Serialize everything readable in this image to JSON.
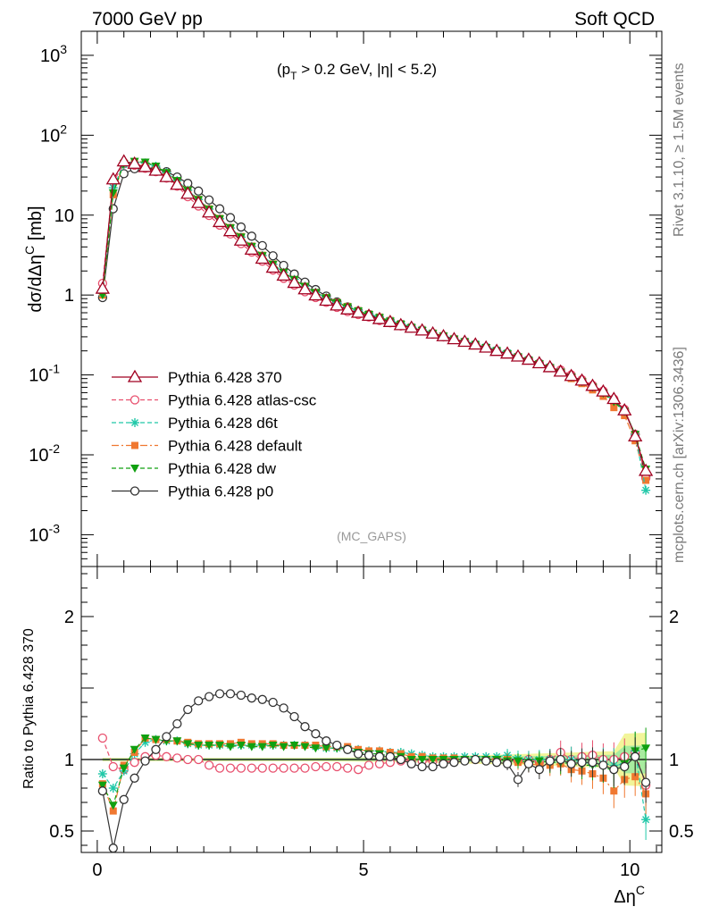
{
  "header": {
    "left": "7000 GeV pp",
    "right": "Soft QCD"
  },
  "side": {
    "rivet": "Rivet 3.1.10, ≥ 1.5M events",
    "mcplots": "mcplots.cern.ch [arXiv:1306.3436]"
  },
  "main": {
    "ylabel_html": "dσ/dΔη^C [mb]",
    "cut": "(pT > 0.2 GeV, |η| < 5.2)",
    "watermark": "(MC_GAPS)"
  },
  "ratio": {
    "ylabel": "Ratio to Pythia 6.428 370"
  },
  "xaxis_label": "Δη^C",
  "chart_data": [
    {
      "type": "line",
      "panel": "main",
      "yscale": "log",
      "xlim": [
        -0.3,
        10.6
      ],
      "ylim": [
        0.0004,
        2000
      ],
      "x": [
        0.1,
        0.3,
        0.5,
        0.7,
        0.9,
        1.1,
        1.3,
        1.5,
        1.7,
        1.9,
        2.1,
        2.3,
        2.5,
        2.7,
        2.9,
        3.1,
        3.3,
        3.5,
        3.7,
        3.9,
        4.1,
        4.3,
        4.5,
        4.7,
        4.9,
        5.1,
        5.3,
        5.5,
        5.7,
        5.9,
        6.1,
        6.3,
        6.5,
        6.7,
        6.9,
        7.1,
        7.3,
        7.5,
        7.7,
        7.9,
        8.1,
        8.3,
        8.5,
        8.7,
        8.9,
        9.1,
        9.3,
        9.5,
        9.7,
        9.9,
        10.1,
        10.3
      ],
      "series": [
        {
          "name": "Pythia 6.428 370",
          "color": "#a00020",
          "marker": "triangle-open",
          "values": [
            1.2,
            28,
            47,
            44,
            40,
            36,
            30,
            24,
            18.5,
            14.2,
            10.8,
            8.2,
            6.3,
            4.8,
            3.7,
            2.85,
            2.2,
            1.75,
            1.42,
            1.18,
            0.99,
            0.85,
            0.74,
            0.66,
            0.6,
            0.55,
            0.5,
            0.46,
            0.42,
            0.39,
            0.36,
            0.33,
            0.305,
            0.28,
            0.26,
            0.24,
            0.22,
            0.2,
            0.185,
            0.17,
            0.155,
            0.14,
            0.125,
            0.11,
            0.097,
            0.085,
            0.073,
            0.062,
            0.05,
            0.036,
            0.017,
            0.0063
          ]
        },
        {
          "name": "Pythia 6.428 atlas-csc",
          "color": "#e8506e",
          "marker": "circle-open",
          "values": [
            1.4,
            26,
            44,
            42,
            38.5,
            35,
            29,
            23,
            17,
            13,
            9.9,
            7.5,
            5.8,
            4.4,
            3.45,
            2.65,
            2.05,
            1.62,
            1.33,
            1.1,
            0.93,
            0.81,
            0.7,
            0.62,
            0.57,
            0.53,
            0.48,
            0.45,
            0.41,
            0.385,
            0.355,
            0.325,
            0.3,
            0.28,
            0.26,
            0.24,
            0.22,
            0.2,
            0.185,
            0.17,
            0.155,
            0.14,
            0.125,
            0.115,
            0.1,
            0.087,
            0.074,
            0.063,
            0.05,
            0.037,
            0.018,
            0.0051
          ]
        },
        {
          "name": "Pythia 6.428 d6t",
          "color": "#20c8a8",
          "marker": "asterisk",
          "values": [
            1.05,
            22,
            43,
            46,
            45,
            41,
            34,
            27,
            20.5,
            15.7,
            11.9,
            9,
            6.9,
            5.3,
            4.05,
            3.12,
            2.42,
            1.92,
            1.57,
            1.29,
            1.08,
            0.92,
            0.8,
            0.71,
            0.64,
            0.58,
            0.53,
            0.48,
            0.44,
            0.4,
            0.37,
            0.335,
            0.31,
            0.285,
            0.265,
            0.245,
            0.225,
            0.205,
            0.19,
            0.17,
            0.155,
            0.14,
            0.125,
            0.11,
            0.095,
            0.083,
            0.071,
            0.06,
            0.048,
            0.035,
            0.018,
            0.0036
          ]
        },
        {
          "name": "Pythia 6.428 default",
          "color": "#f07830",
          "marker": "square",
          "values": [
            1.0,
            18,
            45,
            46,
            46,
            41,
            34,
            27,
            20.6,
            15.8,
            12,
            9.1,
            7,
            5.4,
            4.1,
            3.15,
            2.45,
            1.93,
            1.57,
            1.29,
            1.08,
            0.93,
            0.81,
            0.72,
            0.64,
            0.58,
            0.53,
            0.48,
            0.44,
            0.4,
            0.37,
            0.335,
            0.31,
            0.285,
            0.262,
            0.24,
            0.22,
            0.2,
            0.185,
            0.168,
            0.15,
            0.135,
            0.12,
            0.106,
            0.09,
            0.078,
            0.065,
            0.054,
            0.039,
            0.031,
            0.015,
            0.0048
          ]
        },
        {
          "name": "Pythia 6.428 dw",
          "color": "#10a010",
          "marker": "triangle-down",
          "values": [
            1.0,
            19,
            44,
            47,
            46,
            41,
            34,
            27,
            20.4,
            15.6,
            11.8,
            9,
            6.9,
            5.3,
            4.05,
            3.1,
            2.42,
            1.92,
            1.56,
            1.28,
            1.07,
            0.92,
            0.8,
            0.71,
            0.63,
            0.57,
            0.52,
            0.47,
            0.43,
            0.39,
            0.36,
            0.33,
            0.305,
            0.28,
            0.26,
            0.24,
            0.22,
            0.2,
            0.184,
            0.168,
            0.152,
            0.138,
            0.123,
            0.108,
            0.094,
            0.082,
            0.07,
            0.059,
            0.046,
            0.035,
            0.018,
            0.0066
          ]
        },
        {
          "name": "Pythia 6.428 p0",
          "color": "#333333",
          "marker": "circle-open",
          "values": [
            0.93,
            12,
            33,
            38,
            39.5,
            38,
            35,
            30,
            25,
            20,
            15.5,
            12,
            9.3,
            7.1,
            5.45,
            4.15,
            3.1,
            2.35,
            1.83,
            1.45,
            1.17,
            0.97,
            0.82,
            0.71,
            0.63,
            0.57,
            0.51,
            0.47,
            0.42,
            0.39,
            0.355,
            0.325,
            0.3,
            0.28,
            0.26,
            0.24,
            0.22,
            0.2,
            0.185,
            0.17,
            0.155,
            0.14,
            0.125,
            0.11,
            0.095,
            0.083,
            0.07,
            0.06,
            0.047,
            0.036,
            0.018,
            0.0053
          ]
        }
      ],
      "title": "",
      "ylabel": "dσ/dΔη^C [mb]",
      "ytick_labels": [
        "10^-3",
        "10^-2",
        "10^-1",
        "1",
        "10",
        "10^2",
        "10^3"
      ],
      "legend": "middle-left",
      "grid": false
    },
    {
      "type": "line",
      "panel": "ratio",
      "xlim": [
        -0.3,
        10.6
      ],
      "ylim": [
        0.35,
        2.35
      ],
      "x": [
        0.1,
        0.3,
        0.5,
        0.7,
        0.9,
        1.1,
        1.3,
        1.5,
        1.7,
        1.9,
        2.1,
        2.3,
        2.5,
        2.7,
        2.9,
        3.1,
        3.3,
        3.5,
        3.7,
        3.9,
        4.1,
        4.3,
        4.5,
        4.7,
        4.9,
        5.1,
        5.3,
        5.5,
        5.7,
        5.9,
        6.1,
        6.3,
        6.5,
        6.7,
        6.9,
        7.1,
        7.3,
        7.5,
        7.7,
        7.9,
        8.1,
        8.3,
        8.5,
        8.7,
        8.9,
        9.1,
        9.3,
        9.5,
        9.7,
        9.9,
        10.1,
        10.3
      ],
      "series": [
        {
          "name": "Pythia 6.428 atlas-csc",
          "color": "#e8506e",
          "marker": "circle-open",
          "values": [
            1.15,
            0.95,
            0.93,
            0.98,
            1.02,
            1.03,
            1.02,
            1.01,
            1.0,
            1.0,
            0.96,
            0.94,
            0.94,
            0.94,
            0.94,
            0.94,
            0.94,
            0.94,
            0.94,
            0.94,
            0.95,
            0.95,
            0.95,
            0.94,
            0.93,
            0.96,
            0.97,
            0.98,
            0.99,
            1.0,
            0.99,
            0.99,
            0.98,
            0.99,
            1.0,
            1.0,
            1.0,
            1.0,
            0.99,
            0.99,
            1.0,
            0.98,
            1.0,
            1.05,
            1.0,
            1.02,
            1.03,
            1.0,
            1.0,
            1.02,
            1.05,
            0.82
          ]
        },
        {
          "name": "Pythia 6.428 d6t",
          "color": "#20c8a8",
          "marker": "asterisk",
          "values": [
            0.9,
            0.8,
            0.92,
            1.04,
            1.12,
            1.14,
            1.13,
            1.13,
            1.11,
            1.1,
            1.1,
            1.1,
            1.1,
            1.1,
            1.1,
            1.1,
            1.1,
            1.1,
            1.1,
            1.1,
            1.09,
            1.08,
            1.08,
            1.08,
            1.07,
            1.06,
            1.06,
            1.05,
            1.05,
            1.04,
            1.03,
            1.02,
            1.02,
            1.02,
            1.02,
            1.02,
            1.02,
            1.02,
            1.03,
            1.01,
            1.0,
            1.0,
            1.0,
            1.0,
            1.0,
            0.98,
            0.97,
            0.97,
            0.96,
            0.97,
            1.06,
            0.58
          ]
        },
        {
          "name": "Pythia 6.428 default",
          "color": "#f07830",
          "marker": "square",
          "values": [
            0.83,
            0.64,
            0.96,
            1.05,
            1.15,
            1.14,
            1.14,
            1.13,
            1.12,
            1.11,
            1.11,
            1.11,
            1.11,
            1.12,
            1.11,
            1.11,
            1.11,
            1.1,
            1.1,
            1.1,
            1.1,
            1.09,
            1.09,
            1.09,
            1.07,
            1.06,
            1.06,
            1.05,
            1.04,
            1.02,
            1.02,
            1.01,
            1.01,
            1.01,
            1.0,
            1.0,
            1.0,
            1.0,
            1.0,
            0.98,
            0.97,
            0.96,
            0.96,
            0.97,
            0.93,
            0.92,
            0.9,
            0.87,
            0.78,
            0.86,
            0.88,
            0.76
          ]
        },
        {
          "name": "Pythia 6.428 dw",
          "color": "#10a010",
          "marker": "triangle-down",
          "values": [
            0.82,
            0.68,
            0.94,
            1.07,
            1.15,
            1.14,
            1.13,
            1.13,
            1.11,
            1.1,
            1.1,
            1.1,
            1.09,
            1.1,
            1.09,
            1.09,
            1.1,
            1.09,
            1.1,
            1.09,
            1.08,
            1.08,
            1.08,
            1.07,
            1.05,
            1.04,
            1.04,
            1.02,
            1.02,
            1.0,
            1.0,
            1.0,
            1.0,
            1.0,
            1.0,
            1.0,
            1.0,
            1.0,
            0.99,
            0.99,
            0.98,
            0.99,
            0.98,
            0.98,
            0.97,
            0.96,
            0.96,
            0.95,
            0.92,
            0.97,
            1.06,
            1.08
          ]
        },
        {
          "name": "Pythia 6.428 p0",
          "color": "#333333",
          "marker": "circle-open",
          "values": [
            0.78,
            0.38,
            0.72,
            0.87,
            0.99,
            1.07,
            1.16,
            1.25,
            1.35,
            1.41,
            1.44,
            1.46,
            1.46,
            1.45,
            1.43,
            1.42,
            1.4,
            1.36,
            1.3,
            1.23,
            1.18,
            1.13,
            1.1,
            1.07,
            1.04,
            1.03,
            1.02,
            1.02,
            1.0,
            0.97,
            0.95,
            0.95,
            0.97,
            0.98,
            0.99,
            1.0,
            0.99,
            0.98,
            0.97,
            0.86,
            0.97,
            0.93,
            0.99,
            1.0,
            0.97,
            0.98,
            0.98,
            0.96,
            0.93,
            0.95,
            1.02,
            0.84
          ]
        }
      ],
      "reference": 1,
      "ylabel": "Ratio to Pythia 6.428 370",
      "xlabel": "Δη^C",
      "ytick_labels": [
        "0.5",
        "1",
        "2"
      ],
      "xtick_labels": [
        "0",
        "5",
        "10"
      ],
      "grid": false
    }
  ]
}
